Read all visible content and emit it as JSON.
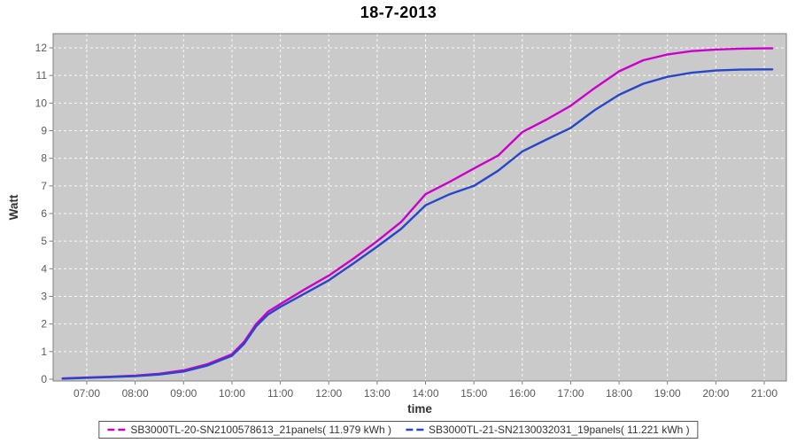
{
  "title": "18-7-2013",
  "chart_data": {
    "type": "line",
    "title": "18-7-2013",
    "xlabel": "time",
    "ylabel": "Watt",
    "ylim": [
      0,
      12
    ],
    "grid": "white-dashed-on-gray",
    "legend_position": "bottom-center",
    "plot_bg_color": "#CACACA",
    "axis_color": "#7f7f7f",
    "x_ticks": [
      "07:00",
      "08:00",
      "09:00",
      "10:00",
      "11:00",
      "12:00",
      "13:00",
      "14:00",
      "15:00",
      "16:00",
      "17:00",
      "18:00",
      "19:00",
      "20:00",
      "21:00"
    ],
    "y_ticks": [
      0,
      1,
      2,
      3,
      4,
      5,
      6,
      7,
      8,
      9,
      10,
      11,
      12
    ],
    "x": [
      "06:30",
      "07:00",
      "07:30",
      "08:00",
      "08:30",
      "09:00",
      "09:30",
      "10:00",
      "10:15",
      "10:30",
      "10:45",
      "11:00",
      "11:30",
      "12:00",
      "12:30",
      "13:00",
      "13:30",
      "14:00",
      "14:30",
      "15:00",
      "15:30",
      "16:00",
      "16:30",
      "17:00",
      "17:30",
      "18:00",
      "18:30",
      "19:00",
      "19:30",
      "20:00",
      "20:30",
      "21:00",
      "21:10"
    ],
    "series": [
      {
        "name": "SB3000TL-20-SN2100578613_21panels( 11.979 kWh )",
        "color": "#CC00CC",
        "total_kwh": 11.979,
        "values": [
          0.03,
          0.06,
          0.09,
          0.13,
          0.2,
          0.32,
          0.55,
          0.9,
          1.35,
          2.0,
          2.45,
          2.72,
          3.25,
          3.75,
          4.35,
          5.0,
          5.7,
          6.7,
          7.15,
          7.63,
          8.1,
          8.95,
          9.4,
          9.9,
          10.55,
          11.15,
          11.55,
          11.76,
          11.88,
          11.94,
          11.97,
          11.98,
          11.98
        ]
      },
      {
        "name": "SB3000TL-21-SN2130032031_19panels( 11.221 kWh )",
        "color": "#2846C8",
        "total_kwh": 11.221,
        "values": [
          0.02,
          0.05,
          0.08,
          0.11,
          0.17,
          0.28,
          0.5,
          0.85,
          1.28,
          1.92,
          2.35,
          2.62,
          3.1,
          3.58,
          4.18,
          4.8,
          5.45,
          6.3,
          6.7,
          7.0,
          7.55,
          8.25,
          8.68,
          9.1,
          9.75,
          10.3,
          10.7,
          10.95,
          11.1,
          11.18,
          11.21,
          11.22,
          11.22
        ]
      }
    ]
  }
}
